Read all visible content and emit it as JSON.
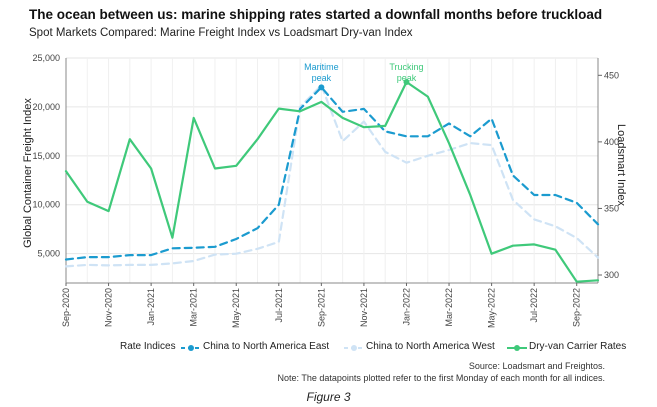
{
  "title": "The ocean between us: marine shipping rates started a downfall months before truckload",
  "subtitle": "Spot Markets Compared: Marine Freight Index vs Loadsmart Dry-van Index",
  "caption": "Figure 3",
  "source": "Source: Loadsmart and Freightos.",
  "note": "Note: The datapoints plotted refer to the first Monday of each month for all indices.",
  "legend": {
    "title": "Rate Indices",
    "items": [
      "China to North America East",
      "China to North America West",
      "Dry-van Carrier Rates"
    ]
  },
  "annotations": {
    "maritime": [
      "Maritime",
      "peak"
    ],
    "trucking": [
      "Trucking",
      "peak"
    ]
  },
  "colors": {
    "east": "#1b9bcf",
    "west": "#cfe3f5",
    "dryvan": "#3fc97a",
    "maritime_label": "#1b9bcf",
    "trucking_label": "#3fc97a"
  },
  "chart_data": {
    "type": "line",
    "title": "The ocean between us: marine shipping rates started a downfall months before truckload",
    "subtitle": "Spot Markets Compared: Marine Freight Index vs Loadsmart Dry-van Index",
    "x": [
      "Sep-2020",
      "Oct-2020",
      "Nov-2020",
      "Dec-2020",
      "Jan-2021",
      "Feb-2021",
      "Mar-2021",
      "Apr-2021",
      "May-2021",
      "Jun-2021",
      "Jul-2021",
      "Aug-2021",
      "Sep-2021",
      "Oct-2021",
      "Nov-2021",
      "Dec-2021",
      "Jan-2022",
      "Feb-2022",
      "Mar-2022",
      "Apr-2022",
      "May-2022",
      "Jun-2022",
      "Jul-2022",
      "Aug-2022",
      "Sep-2022",
      "Oct-2022"
    ],
    "xtick_labels": [
      "Sep-2020",
      "Nov-2020",
      "Jan-2021",
      "Mar-2021",
      "May-2021",
      "Jul-2021",
      "Sep-2021",
      "Nov-2021",
      "Jan-2022",
      "Mar-2022",
      "May-2022",
      "Jul-2022",
      "Sep-2022"
    ],
    "ylabel": "Global Container Freight Index",
    "y2label": "Loadsmart Index",
    "ylim": [
      2000,
      25000
    ],
    "yticks": [
      5000,
      10000,
      15000,
      20000,
      25000
    ],
    "ytick_labels": [
      "5,000",
      "10,000",
      "15,000",
      "20,000",
      "25,000"
    ],
    "y2lim": [
      294,
      463
    ],
    "y2ticks": [
      300,
      350,
      400,
      450
    ],
    "y2tick_labels": [
      "300",
      "350",
      "400",
      "450"
    ],
    "grid": true,
    "legend_position": "bottom",
    "series": [
      {
        "name": "China to North America East",
        "axis": "left",
        "style": "dashed",
        "values": [
          4400,
          4650,
          4650,
          4850,
          4850,
          5550,
          5600,
          5700,
          6500,
          7600,
          10000,
          19800,
          22000,
          19500,
          19800,
          17500,
          17000,
          17000,
          18300,
          17000,
          18800,
          13000,
          11000,
          11000,
          10200,
          8000
        ]
      },
      {
        "name": "China to North America West",
        "axis": "left",
        "style": "dashed",
        "values": [
          3700,
          3850,
          3800,
          3850,
          3850,
          4000,
          4250,
          4900,
          5000,
          5500,
          6200,
          20000,
          22200,
          16500,
          18500,
          15400,
          14300,
          15000,
          15600,
          16300,
          16100,
          10500,
          8500,
          7800,
          6600,
          4600
        ]
      },
      {
        "name": "Dry-van Carrier Rates",
        "axis": "right",
        "style": "solid",
        "values": [
          378,
          355,
          348,
          402,
          380,
          328,
          418,
          380,
          382,
          402,
          425,
          423,
          430,
          418,
          411,
          412,
          445,
          434,
          399,
          360,
          316,
          322,
          323,
          319,
          295,
          296
        ]
      }
    ],
    "annotations": [
      {
        "text": "Maritime peak",
        "series": "China to North America East",
        "x": "Sep-2021",
        "y": 22000
      },
      {
        "text": "Trucking peak",
        "series": "Dry-van Carrier Rates",
        "x": "Jan-2022",
        "y": 445
      }
    ]
  }
}
